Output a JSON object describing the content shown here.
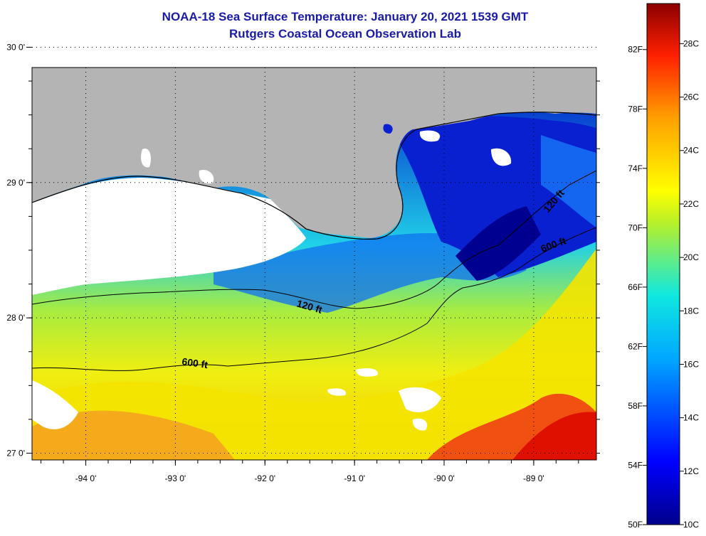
{
  "title": {
    "line1": "NOAA-18 Sea Surface Temperature:  January 20, 2021 1539 GMT",
    "line2": "Rutgers Coastal Ocean Observation Lab"
  },
  "map": {
    "lon_range": [
      -94.6,
      -88.3
    ],
    "lat_range": [
      26.95,
      29.85
    ],
    "lon_ticks": [
      {
        "value": -94,
        "label": "-94 0'"
      },
      {
        "value": -93,
        "label": "-93 0'"
      },
      {
        "value": -92,
        "label": "-92 0'"
      },
      {
        "value": -91,
        "label": "-91 0'"
      },
      {
        "value": -90,
        "label": "-90 0'"
      },
      {
        "value": -89,
        "label": "-89 0'"
      }
    ],
    "lat_ticks": [
      {
        "value": 27,
        "label": "27 0'"
      },
      {
        "value": 28,
        "label": "28 0'"
      },
      {
        "value": 29,
        "label": "29 0'"
      },
      {
        "value": 30,
        "label": "30 0'"
      }
    ],
    "contour_labels": [
      "120 ft",
      "600 ft",
      "120 ft",
      "600 ft"
    ],
    "colors": {
      "land": "#b4b4b4",
      "cloud": "#ffffff",
      "cold": "#0010d0",
      "mid": "#20c8e8",
      "warm": "#f0f000",
      "hot": "#e81000"
    }
  },
  "colorbar": {
    "f_labels": [
      "82F",
      "78F",
      "74F",
      "70F",
      "66F",
      "62F",
      "58F",
      "54F",
      "50F"
    ],
    "c_labels": [
      "28C",
      "26C",
      "24C",
      "22C",
      "20C",
      "18C",
      "16C",
      "14C",
      "12C",
      "10C"
    ],
    "range_c": [
      10,
      29.5
    ]
  }
}
